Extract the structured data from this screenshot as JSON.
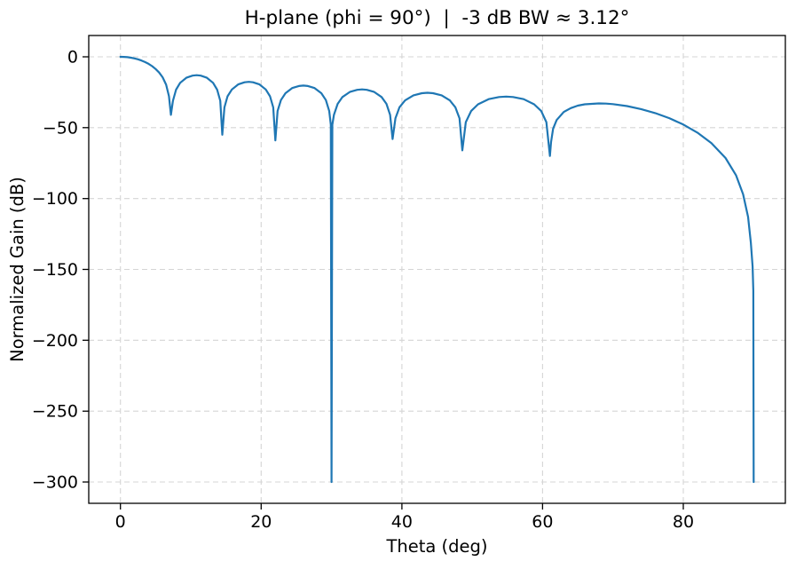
{
  "chart_data": {
    "type": "line",
    "title": "H-plane (phi = 90°)  |  -3 dB BW ≈ 3.12°",
    "xlabel": "Theta (deg)",
    "ylabel": "Normalized Gain (dB)",
    "xlim": [
      -4.5,
      94.5
    ],
    "ylim": [
      -315,
      15
    ],
    "xticks": [
      0,
      20,
      40,
      60,
      80
    ],
    "yticks": [
      0,
      -50,
      -100,
      -150,
      -200,
      -250,
      -300
    ],
    "grid": true,
    "legend": "none",
    "line_color": "#1f77b4",
    "background_color": "#ffffff",
    "beamwidth_deg_minus3db": 3.12,
    "phi_deg": 90,
    "gain_floor_db": -300,
    "null_positions_deg": [
      7.18,
      14.48,
      22.02,
      30.0,
      38.68,
      48.59,
      61.04,
      90.0
    ],
    "sidelobe_peaks_db": [
      -13.0,
      -17.7,
      -20.3,
      -23.0,
      -25.4,
      -28.1,
      -32.9
    ],
    "series": [
      {
        "name": "Normalized gain vs theta",
        "points": [
          [
            0,
            0
          ],
          [
            0.5,
            -0.07
          ],
          [
            1,
            -0.28
          ],
          [
            1.5,
            -0.63
          ],
          [
            2,
            -1.13
          ],
          [
            2.5,
            -1.8
          ],
          [
            3,
            -2.66
          ],
          [
            3.5,
            -3.71
          ],
          [
            4,
            -5.0
          ],
          [
            4.5,
            -6.6
          ],
          [
            5,
            -8.6
          ],
          [
            5.5,
            -11.1
          ],
          [
            6,
            -14.5
          ],
          [
            6.5,
            -19.7
          ],
          [
            6.9,
            -27.8
          ],
          [
            7.18,
            -41
          ],
          [
            7.47,
            -31
          ],
          [
            7.91,
            -23.2
          ],
          [
            8.49,
            -18.4
          ],
          [
            9.37,
            -14.8
          ],
          [
            10.25,
            -13.3
          ],
          [
            10.83,
            -13.0
          ],
          [
            11.41,
            -13.3
          ],
          [
            12.29,
            -14.8
          ],
          [
            13.17,
            -18.4
          ],
          [
            13.75,
            -23.2
          ],
          [
            14.19,
            -31
          ],
          [
            14.48,
            -55
          ],
          [
            14.78,
            -35.7
          ],
          [
            15.23,
            -27.9
          ],
          [
            15.84,
            -23.1
          ],
          [
            16.74,
            -19.5
          ],
          [
            17.65,
            -18.0
          ],
          [
            18.25,
            -17.7
          ],
          [
            18.85,
            -18.0
          ],
          [
            19.76,
            -19.5
          ],
          [
            20.66,
            -23.1
          ],
          [
            21.27,
            -27.9
          ],
          [
            21.72,
            -35.7
          ],
          [
            22.02,
            -59
          ],
          [
            22.34,
            -38.3
          ],
          [
            22.82,
            -30.5
          ],
          [
            23.46,
            -25.7
          ],
          [
            24.41,
            -22.1
          ],
          [
            25.37,
            -20.6
          ],
          [
            26.01,
            -20.3
          ],
          [
            26.65,
            -20.6
          ],
          [
            27.6,
            -22.1
          ],
          [
            28.56,
            -25.7
          ],
          [
            29.2,
            -30.5
          ],
          [
            29.68,
            -38.3
          ],
          [
            29.9,
            -48
          ],
          [
            30,
            -300
          ],
          [
            30.12,
            -48
          ],
          [
            30.35,
            -41
          ],
          [
            30.87,
            -33.2
          ],
          [
            31.56,
            -28.4
          ],
          [
            32.6,
            -24.8
          ],
          [
            33.65,
            -23.3
          ],
          [
            34.34,
            -23.0
          ],
          [
            35.03,
            -23.3
          ],
          [
            36.07,
            -24.8
          ],
          [
            37.12,
            -28.4
          ],
          [
            37.81,
            -33.2
          ],
          [
            38.33,
            -41
          ],
          [
            38.68,
            -58
          ],
          [
            39.08,
            -43.4
          ],
          [
            39.67,
            -35.6
          ],
          [
            40.46,
            -30.8
          ],
          [
            41.65,
            -27.2
          ],
          [
            42.84,
            -25.7
          ],
          [
            43.64,
            -25.4
          ],
          [
            44.43,
            -25.7
          ],
          [
            45.65,
            -27.2
          ],
          [
            46.81,
            -30.8
          ],
          [
            47.6,
            -35.6
          ],
          [
            48.19,
            -43.4
          ],
          [
            48.59,
            -66
          ],
          [
            49.09,
            -46.1
          ],
          [
            49.84,
            -38.3
          ],
          [
            50.83,
            -33.5
          ],
          [
            52.33,
            -29.9
          ],
          [
            53.82,
            -28.4
          ],
          [
            54.82,
            -28.1
          ],
          [
            55.81,
            -28.4
          ],
          [
            57.31,
            -29.9
          ],
          [
            58.8,
            -33.5
          ],
          [
            59.8,
            -38.3
          ],
          [
            60.54,
            -46.1
          ],
          [
            61.04,
            -70
          ],
          [
            61.2,
            -60
          ],
          [
            61.5,
            -50.7
          ],
          [
            62,
            -44.6
          ],
          [
            63,
            -39.0
          ],
          [
            64,
            -36.2
          ],
          [
            65,
            -34.5
          ],
          [
            66,
            -33.5
          ],
          [
            68,
            -32.9
          ],
          [
            69,
            -33.0
          ],
          [
            70,
            -33.4
          ],
          [
            72,
            -34.8
          ],
          [
            74,
            -36.9
          ],
          [
            76,
            -39.7
          ],
          [
            78,
            -43.3
          ],
          [
            80,
            -47.8
          ],
          [
            82,
            -53.5
          ],
          [
            84,
            -60.9
          ],
          [
            86,
            -71.4
          ],
          [
            87.5,
            -83.7
          ],
          [
            88.5,
            -97
          ],
          [
            89.2,
            -113
          ],
          [
            89.6,
            -131
          ],
          [
            89.85,
            -148
          ],
          [
            89.95,
            -165
          ],
          [
            90,
            -300
          ]
        ]
      }
    ]
  }
}
